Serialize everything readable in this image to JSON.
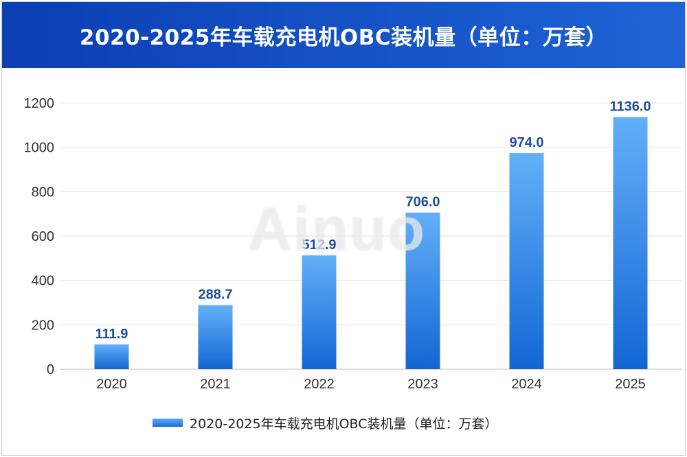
{
  "header": {
    "title": "2020-2025年车载充电机OBC装机量（单位：万套）"
  },
  "watermark": {
    "text": "Ainuo"
  },
  "legend": {
    "label": "2020-2025年车载充电机OBC装机量（单位：万套）"
  },
  "colors": {
    "header_start": "#0b3fb3",
    "header_end": "#1e63d6",
    "bar_top": "#63b0f8",
    "bar_bottom": "#1266d4",
    "value_label": "#1f4e9c"
  },
  "chart_data": {
    "type": "bar",
    "categories": [
      "2020",
      "2021",
      "2022",
      "2023",
      "2024",
      "2025"
    ],
    "series": [
      {
        "name": "2020-2025年车载充电机OBC装机量（单位：万套）",
        "values": [
          111.9,
          288.7,
          512.9,
          706.0,
          974.0,
          1136.0
        ],
        "labels": [
          "111.9",
          "288.7",
          "512.9",
          "706.0",
          "974.0",
          "1136.0"
        ]
      }
    ],
    "ylim": [
      0,
      1200
    ],
    "yticks": [
      "0",
      "200",
      "400",
      "600",
      "800",
      "1000",
      "1200"
    ],
    "grid": true,
    "legend_position": "bottom"
  }
}
